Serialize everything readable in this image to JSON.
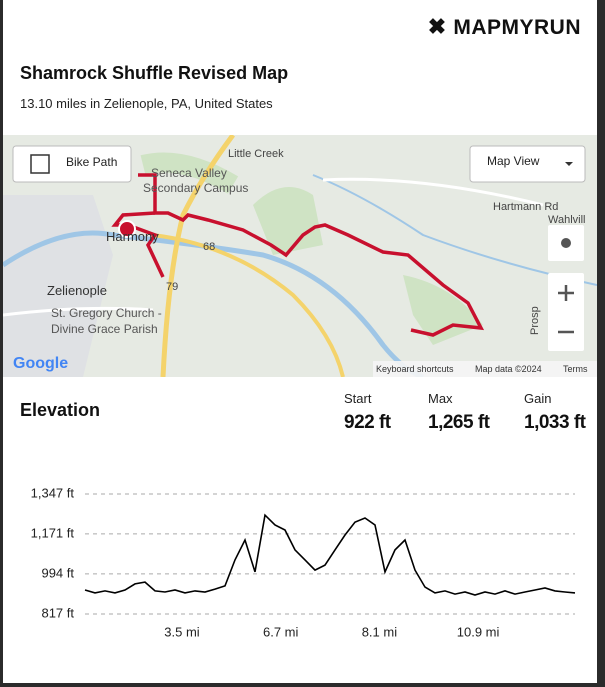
{
  "header": {
    "brand": "MAPMYRUN",
    "title": "Shamrock Shuffle Revised Map",
    "subtitle": "13.10 miles in Zelienople, PA, United States"
  },
  "map": {
    "bike_path": "Bike Path",
    "map_view": "Map View",
    "places": [
      "Little Creek",
      "Seneca Valley",
      "Secondary Campus",
      "Harmony",
      "Zelienople",
      "St. Gregory Church -",
      "Divine Grace Parish",
      "Hartmann Rd",
      "Wahlvill",
      "Prosp",
      "68",
      "79"
    ],
    "google": "Google",
    "footer": [
      "Keyboard shortcuts",
      "Map data ©2024",
      "Terms"
    ]
  },
  "elevation": {
    "title": "Elevation",
    "stats": [
      {
        "label": "Start",
        "value": "922 ft"
      },
      {
        "label": "Max",
        "value": "1,265 ft"
      },
      {
        "label": "Gain",
        "value": "1,033 ft"
      }
    ]
  },
  "chart_data": {
    "type": "line",
    "color": "#000000",
    "values": [
      923,
      910,
      919,
      910,
      923,
      950,
      958,
      919,
      914,
      923,
      910,
      919,
      914,
      927,
      941,
      1056,
      1144,
      1003,
      1254,
      1210,
      1188,
      1100,
      1056,
      1011,
      1033,
      1100,
      1166,
      1223,
      1241,
      1210,
      1003,
      1100,
      1144,
      1011,
      936,
      910,
      919,
      905,
      914,
      901,
      914,
      905,
      919,
      905,
      914,
      923,
      932,
      919,
      914,
      910
    ],
    "ylim": [
      817,
      1347
    ],
    "yticks": [
      {
        "value": 817,
        "label": "817 ft"
      },
      {
        "value": 994,
        "label": "994 ft"
      },
      {
        "value": 1171,
        "label": "1,171 ft"
      },
      {
        "value": 1347,
        "label": "1,347 ft"
      }
    ],
    "x_labels": [
      "3.5 mi",
      "6.7 mi",
      "8.1 mi",
      "10.9 mi"
    ],
    "grid": true
  }
}
